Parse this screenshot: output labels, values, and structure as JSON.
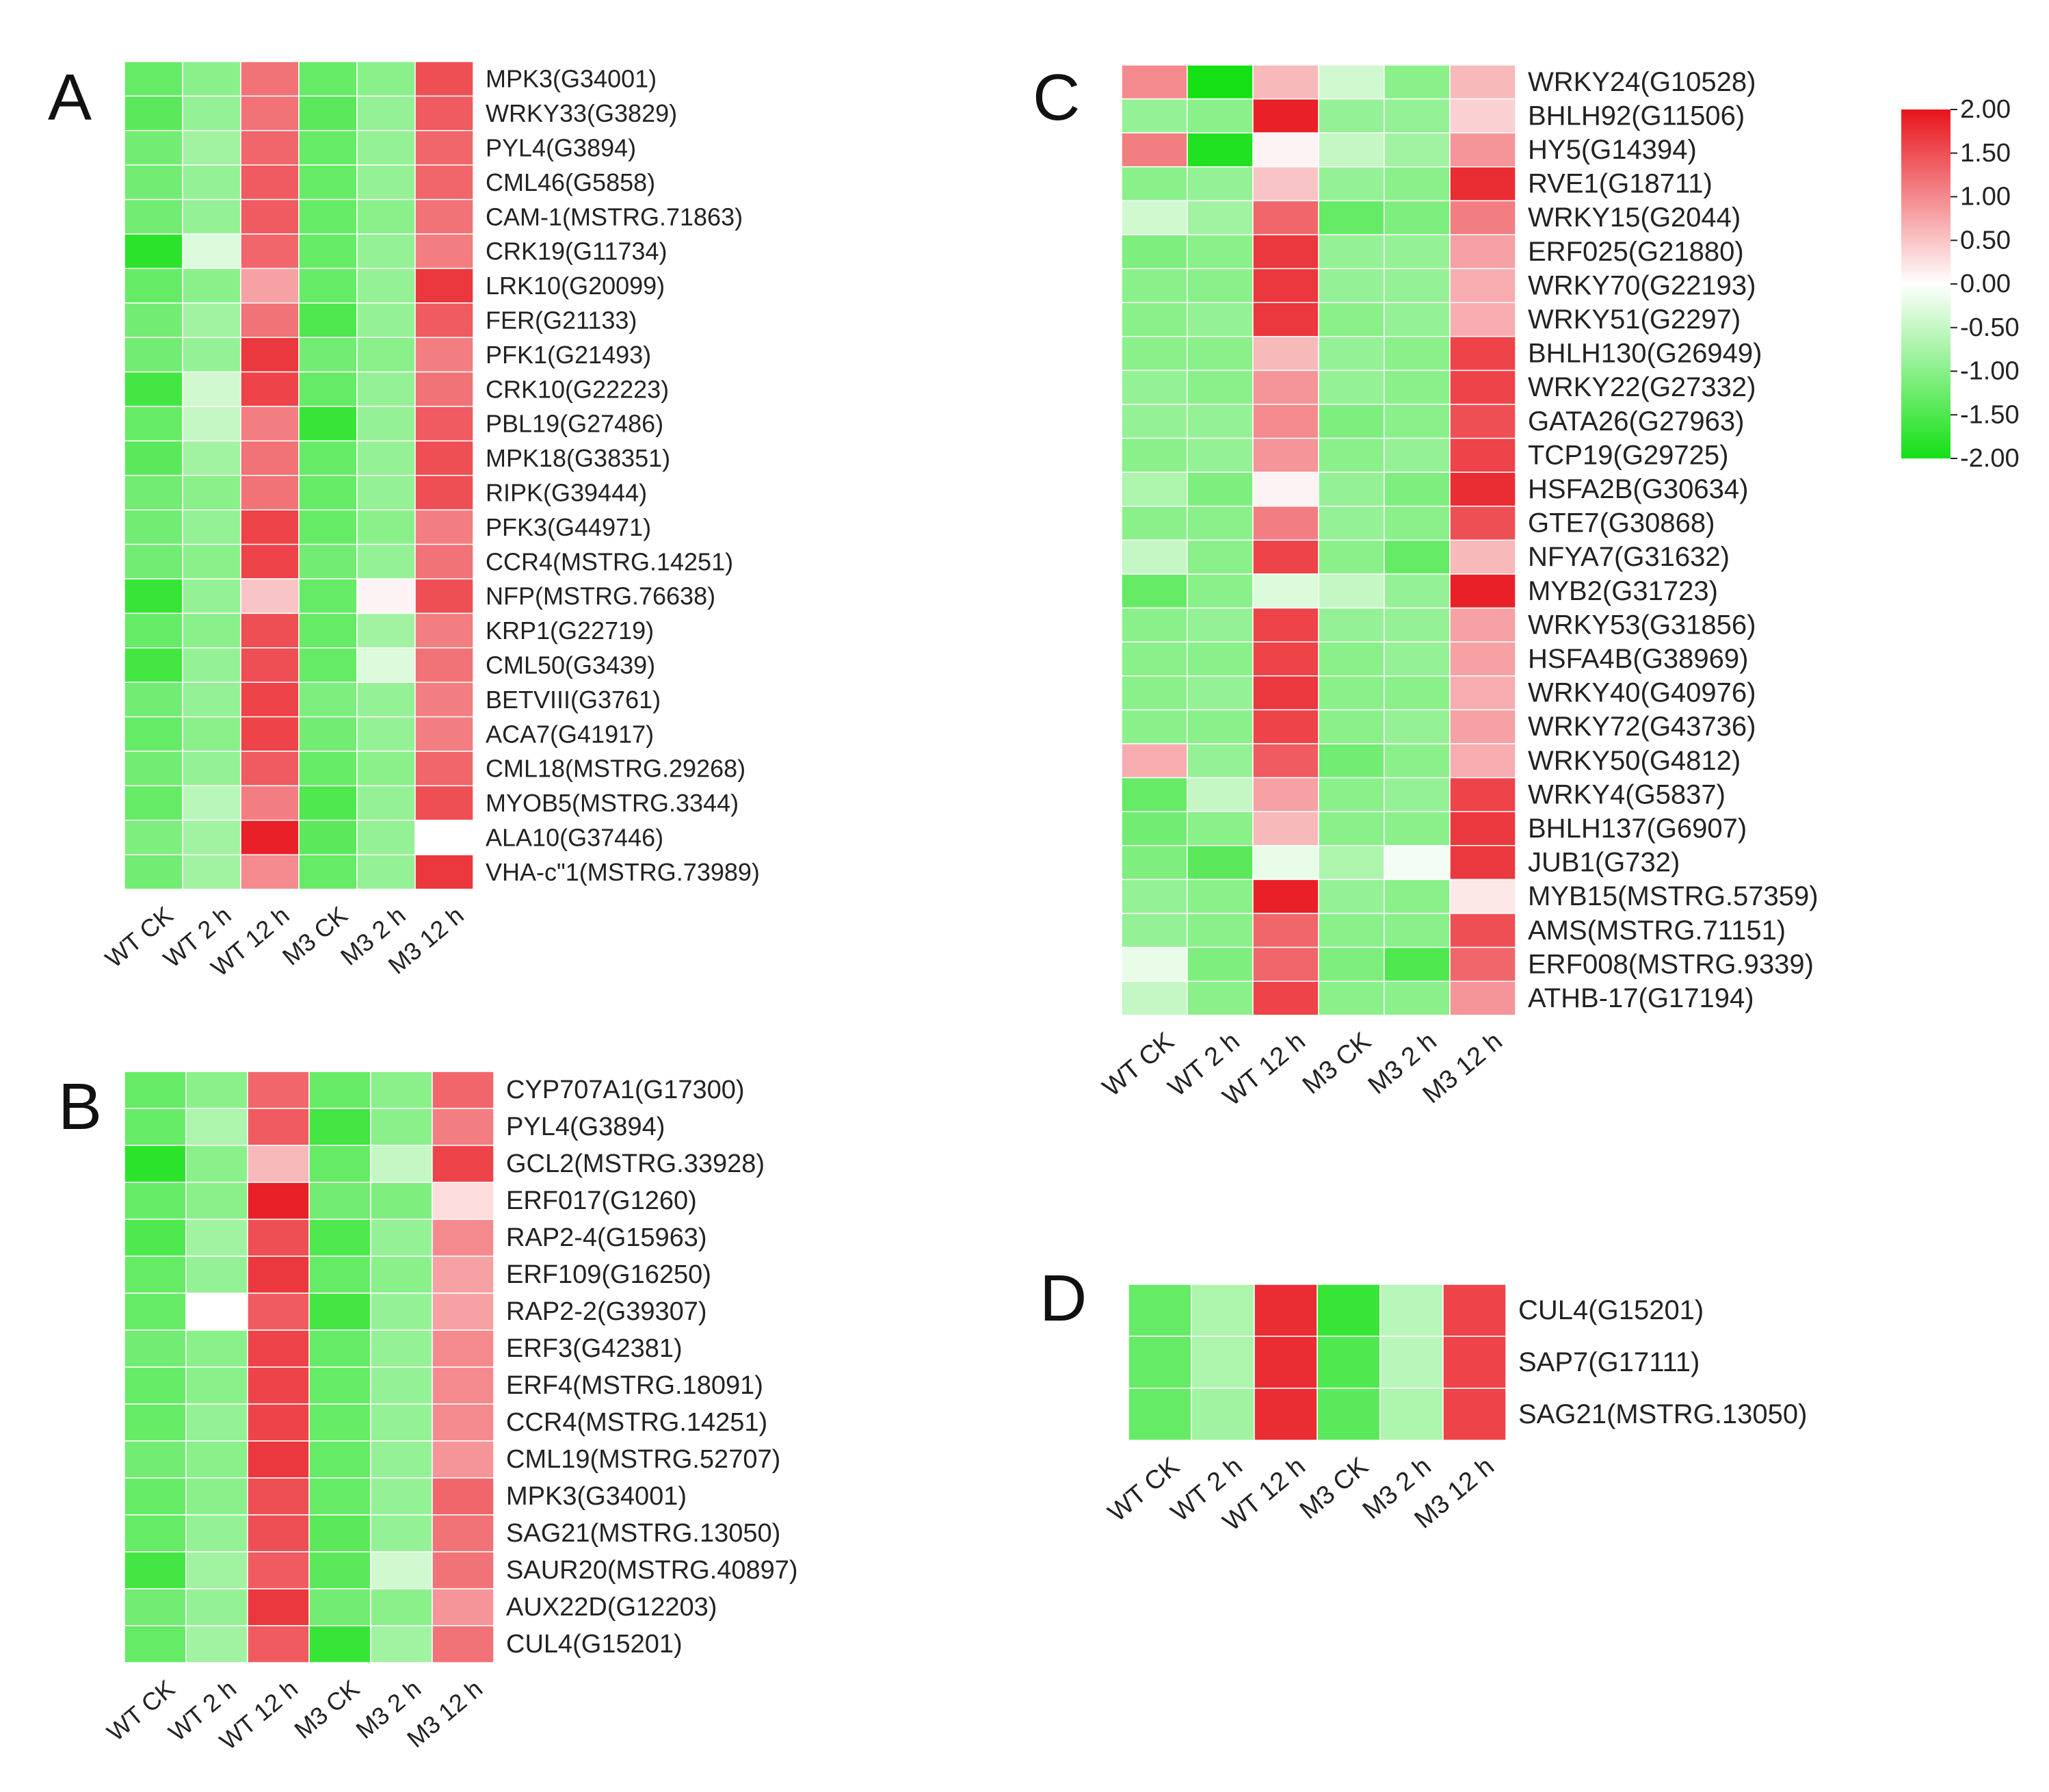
{
  "chart_data": [
    {
      "type": "heatmap",
      "panel": "A",
      "columns": [
        "WT CK",
        "WT 2 h",
        "WT 12 h",
        "M3 CK",
        "M3 2 h",
        "M3 12 h"
      ],
      "rows": [
        "MPK3(G34001)",
        "WRKY33(G3829)",
        "PYL4(G3894)",
        "CML46(G5858)",
        "CAM-1(MSTRG.71863)",
        "CRK19(G11734)",
        "LRK10(G20099)",
        "FER(G21133)",
        "PFK1(G21493)",
        "CRK10(G22223)",
        "PBL19(G27486)",
        "MPK18(G38351)",
        "RIPK(G39444)",
        "PFK3(G44971)",
        "CCR4(MSTRG.14251)",
        "NFP(MSTRG.76638)",
        "KRP1(G22719)",
        "CML50(G3439)",
        "BETVIII(G3761)",
        "ACA7(G41917)",
        "CML18(MSTRG.29268)",
        "MYOB5(MSTRG.3344)",
        "ALA10(G37446)",
        "VHA-c\"1(MSTRG.73989)"
      ],
      "values": [
        [
          -1.3,
          -1.0,
          1.2,
          -1.3,
          -1.0,
          1.5
        ],
        [
          -1.4,
          -0.9,
          1.2,
          -1.4,
          -0.9,
          1.4
        ],
        [
          -1.2,
          -0.8,
          1.3,
          -1.3,
          -0.9,
          1.3
        ],
        [
          -1.2,
          -0.9,
          1.4,
          -1.3,
          -0.9,
          1.3
        ],
        [
          -1.2,
          -0.9,
          1.4,
          -1.3,
          -1.0,
          1.2
        ],
        [
          -1.8,
          -0.3,
          1.3,
          -1.3,
          -0.9,
          1.1
        ],
        [
          -1.3,
          -1.0,
          0.8,
          -1.3,
          -0.9,
          1.7
        ],
        [
          -1.2,
          -0.8,
          1.2,
          -1.5,
          -0.9,
          1.4
        ],
        [
          -1.2,
          -0.9,
          1.7,
          -1.2,
          -1.0,
          1.1
        ],
        [
          -1.6,
          -0.4,
          1.6,
          -1.3,
          -0.9,
          1.2
        ],
        [
          -1.3,
          -0.5,
          1.1,
          -1.7,
          -0.9,
          1.4
        ],
        [
          -1.4,
          -0.8,
          1.2,
          -1.3,
          -0.9,
          1.5
        ],
        [
          -1.2,
          -1.0,
          1.2,
          -1.3,
          -0.9,
          1.5
        ],
        [
          -1.2,
          -0.9,
          1.6,
          -1.3,
          -1.0,
          1.1
        ],
        [
          -1.2,
          -1.0,
          1.6,
          -1.2,
          -0.9,
          1.2
        ],
        [
          -1.7,
          -0.9,
          0.5,
          -1.3,
          0.1,
          1.5
        ],
        [
          -1.3,
          -1.0,
          1.5,
          -1.3,
          -0.8,
          1.1
        ],
        [
          -1.6,
          -0.9,
          1.5,
          -1.3,
          -0.3,
          1.2
        ],
        [
          -1.2,
          -0.9,
          1.6,
          -1.1,
          -0.9,
          1.1
        ],
        [
          -1.3,
          -1.0,
          1.6,
          -1.2,
          -0.9,
          1.1
        ],
        [
          -1.2,
          -0.9,
          1.4,
          -1.3,
          -1.0,
          1.3
        ],
        [
          -1.3,
          -0.6,
          1.1,
          -1.5,
          -0.9,
          1.5
        ],
        [
          -1.1,
          -0.8,
          1.9,
          -1.4,
          -0.9,
          0.0
        ],
        [
          -1.2,
          -0.8,
          1.0,
          -1.3,
          -0.9,
          1.7
        ]
      ],
      "colorbar": {
        "min": -2.0,
        "max": 2.0
      }
    },
    {
      "type": "heatmap",
      "panel": "B",
      "columns": [
        "WT CK",
        "WT 2 h",
        "WT 12 h",
        "M3 CK",
        "M3 2 h",
        "M3 12 h"
      ],
      "rows": [
        "CYP707A1(G17300)",
        "PYL4(G3894)",
        "GCL2(MSTRG.33928)",
        "ERF017(G1260)",
        "RAP2-4(G15963)",
        "ERF109(G16250)",
        "RAP2-2(G39307)",
        "ERF3(G42381)",
        "ERF4(MSTRG.18091)",
        "CCR4(MSTRG.14251)",
        "CML19(MSTRG.52707)",
        "MPK3(G34001)",
        "SAG21(MSTRG.13050)",
        "SAUR20(MSTRG.40897)",
        "AUX22D(G12203)",
        "CUL4(G15201)"
      ],
      "values": [
        [
          -1.3,
          -1.0,
          1.3,
          -1.3,
          -1.0,
          1.3
        ],
        [
          -1.3,
          -0.7,
          1.4,
          -1.6,
          -1.0,
          1.1
        ],
        [
          -1.8,
          -1.0,
          0.6,
          -1.3,
          -0.5,
          1.6
        ],
        [
          -1.3,
          -1.0,
          1.9,
          -1.2,
          -1.1,
          0.3
        ],
        [
          -1.5,
          -0.8,
          1.5,
          -1.5,
          -0.9,
          1.0
        ],
        [
          -1.3,
          -0.9,
          1.7,
          -1.3,
          -1.0,
          0.8
        ],
        [
          -1.3,
          0.0,
          1.4,
          -1.6,
          -0.9,
          0.8
        ],
        [
          -1.2,
          -1.0,
          1.6,
          -1.3,
          -0.9,
          1.0
        ],
        [
          -1.3,
          -1.0,
          1.6,
          -1.3,
          -0.9,
          1.0
        ],
        [
          -1.3,
          -0.9,
          1.6,
          -1.3,
          -0.9,
          1.0
        ],
        [
          -1.2,
          -1.0,
          1.7,
          -1.3,
          -0.9,
          0.9
        ],
        [
          -1.3,
          -1.0,
          1.5,
          -1.3,
          -0.9,
          1.3
        ],
        [
          -1.3,
          -0.9,
          1.5,
          -1.4,
          -0.9,
          1.2
        ],
        [
          -1.6,
          -0.8,
          1.4,
          -1.4,
          -0.4,
          1.2
        ],
        [
          -1.2,
          -0.9,
          1.7,
          -1.2,
          -1.0,
          0.9
        ],
        [
          -1.3,
          -0.8,
          1.4,
          -1.7,
          -0.8,
          1.2
        ]
      ],
      "colorbar": {
        "min": -2.0,
        "max": 2.0
      }
    },
    {
      "type": "heatmap",
      "panel": "C",
      "columns": [
        "WT CK",
        "WT 2 h",
        "WT 12 h",
        "M3 CK",
        "M3 2 h",
        "M3 12 h"
      ],
      "rows": [
        "WRKY24(G10528)",
        "BHLH92(G11506)",
        "HY5(G14394)",
        "RVE1(G18711)",
        "WRKY15(G2044)",
        "ERF025(G21880)",
        "WRKY70(G22193)",
        "WRKY51(G2297)",
        "BHLH130(G26949)",
        "WRKY22(G27332)",
        "GATA26(G27963)",
        "TCP19(G29725)",
        "HSFA2B(G30634)",
        "GTE7(G30868)",
        "NFYA7(G31632)",
        "MYB2(G31723)",
        "WRKY53(G31856)",
        "HSFA4B(G38969)",
        "WRKY40(G40976)",
        "WRKY72(G43736)",
        "WRKY50(G4812)",
        "WRKY4(G5837)",
        "BHLH137(G6907)",
        "JUB1(G732)",
        "MYB15(MSTRG.57359)",
        "AMS(MSTRG.71151)",
        "ERF008(MSTRG.9339)",
        "ATHB-17(G17194)"
      ],
      "values": [
        [
          1.0,
          -2.0,
          0.6,
          -0.4,
          -1.0,
          0.6
        ],
        [
          -0.9,
          -1.0,
          1.9,
          -0.9,
          -0.9,
          0.4
        ],
        [
          1.1,
          -1.9,
          0.1,
          -0.5,
          -0.8,
          0.9
        ],
        [
          -1.0,
          -0.9,
          0.5,
          -0.9,
          -1.0,
          1.8
        ],
        [
          -0.4,
          -0.8,
          1.3,
          -1.3,
          -1.1,
          1.1
        ],
        [
          -1.1,
          -1.0,
          1.7,
          -0.9,
          -0.9,
          0.8
        ],
        [
          -1.0,
          -1.0,
          1.7,
          -0.9,
          -0.9,
          0.7
        ],
        [
          -1.0,
          -0.9,
          1.7,
          -1.0,
          -0.9,
          0.7
        ],
        [
          -1.0,
          -1.0,
          0.6,
          -0.9,
          -1.0,
          1.6
        ],
        [
          -0.9,
          -1.0,
          0.9,
          -0.9,
          -1.0,
          1.6
        ],
        [
          -0.9,
          -0.9,
          1.0,
          -1.1,
          -1.0,
          1.5
        ],
        [
          -1.0,
          -0.9,
          0.9,
          -1.0,
          -0.9,
          1.6
        ],
        [
          -0.7,
          -1.1,
          0.1,
          -0.9,
          -1.1,
          1.8
        ],
        [
          -1.0,
          -1.0,
          1.1,
          -0.9,
          -1.0,
          1.5
        ],
        [
          -0.5,
          -1.0,
          1.6,
          -1.0,
          -1.3,
          0.6
        ],
        [
          -1.3,
          -1.0,
          -0.3,
          -0.5,
          -0.9,
          1.9
        ],
        [
          -1.0,
          -0.9,
          1.6,
          -0.9,
          -0.9,
          0.8
        ],
        [
          -1.0,
          -1.0,
          1.6,
          -1.0,
          -0.9,
          0.8
        ],
        [
          -1.0,
          -0.9,
          1.7,
          -1.0,
          -1.0,
          0.7
        ],
        [
          -1.0,
          -1.0,
          1.6,
          -1.0,
          -0.9,
          0.8
        ],
        [
          0.7,
          -0.9,
          1.4,
          -1.2,
          -1.0,
          0.7
        ],
        [
          -1.3,
          -0.5,
          0.8,
          -1.0,
          -0.9,
          1.6
        ],
        [
          -1.2,
          -1.0,
          0.6,
          -1.0,
          -1.0,
          1.7
        ],
        [
          -1.1,
          -1.4,
          -0.2,
          -0.7,
          -0.1,
          1.7
        ],
        [
          -0.9,
          -1.0,
          1.9,
          -0.9,
          -1.0,
          0.2
        ],
        [
          -0.9,
          -1.0,
          1.3,
          -1.0,
          -1.0,
          1.5
        ],
        [
          -0.2,
          -1.1,
          1.3,
          -1.1,
          -1.5,
          1.3
        ],
        [
          -0.5,
          -1.0,
          1.6,
          -1.0,
          -1.0,
          0.9
        ]
      ],
      "colorbar": {
        "min": -2.0,
        "max": 2.0
      }
    },
    {
      "type": "heatmap",
      "panel": "D",
      "columns": [
        "WT CK",
        "WT 2 h",
        "WT 12 h",
        "M3 CK",
        "M3 2 h",
        "M3 12 h"
      ],
      "rows": [
        "CUL4(G15201)",
        "SAP7(G17111)",
        "SAG21(MSTRG.13050)"
      ],
      "values": [
        [
          -1.3,
          -0.7,
          1.8,
          -1.7,
          -0.6,
          1.6
        ],
        [
          -1.3,
          -0.7,
          1.8,
          -1.5,
          -0.6,
          1.6
        ],
        [
          -1.3,
          -0.8,
          1.8,
          -1.4,
          -0.7,
          1.6
        ]
      ],
      "colorbar": {
        "min": -2.0,
        "max": 2.0
      }
    }
  ],
  "panels": [
    {
      "letter": "A"
    },
    {
      "letter": "B"
    },
    {
      "letter": "C"
    },
    {
      "letter": "D"
    }
  ],
  "colorbar": {
    "ticks": [
      "2.00",
      "1.50",
      "1.00",
      "0.50",
      "0.00",
      "-0.50",
      "-1.00",
      "-1.50",
      "-2.00"
    ],
    "high_color": "#e8141c",
    "mid_color": "#ffffff",
    "low_color": "#14e014"
  }
}
